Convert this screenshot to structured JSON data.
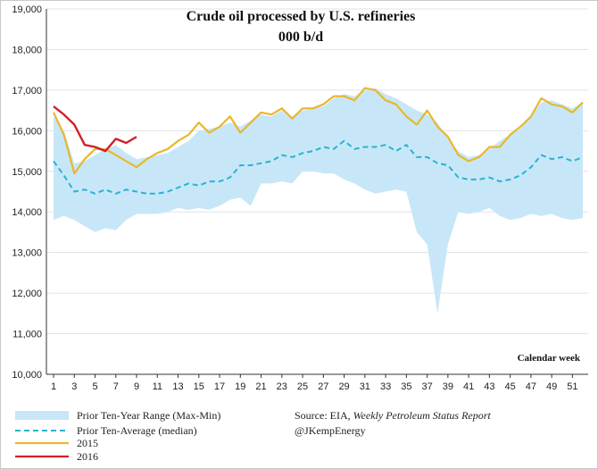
{
  "chart_data": {
    "type": "line",
    "title": "Crude oil processed by U.S. refineries",
    "subtitle": "000 b/d",
    "xlabel": "Calendar week",
    "ylim": [
      10000,
      19000
    ],
    "yticks": [
      "10,000",
      "11,000",
      "12,000",
      "13,000",
      "14,000",
      "15,000",
      "16,000",
      "17,000",
      "18,000",
      "19,000"
    ],
    "xlim": [
      1,
      52
    ],
    "xticks": [
      "1",
      "3",
      "5",
      "7",
      "9",
      "11",
      "13",
      "15",
      "17",
      "19",
      "21",
      "23",
      "25",
      "27",
      "29",
      "31",
      "33",
      "35",
      "37",
      "39",
      "41",
      "43",
      "45",
      "47",
      "49",
      "51"
    ],
    "grid": "horizontal",
    "legend_position": "bottom-left",
    "colors": {
      "range": "#c7e7f8",
      "median": "#27b5cf",
      "y2015": "#eab72c",
      "y2016": "#d0202a"
    },
    "series": [
      {
        "name": "Prior Ten-Year Range (Max-Min)",
        "kind": "band",
        "x": [
          1,
          2,
          3,
          4,
          5,
          6,
          7,
          8,
          9,
          10,
          11,
          12,
          13,
          14,
          15,
          16,
          17,
          18,
          19,
          20,
          21,
          22,
          23,
          24,
          25,
          26,
          27,
          28,
          29,
          30,
          31,
          32,
          33,
          34,
          35,
          36,
          37,
          38,
          39,
          40,
          41,
          42,
          43,
          44,
          45,
          46,
          47,
          48,
          49,
          50,
          51,
          52
        ],
        "upper": [
          16350,
          16000,
          15200,
          15250,
          15400,
          15550,
          15650,
          15450,
          15300,
          15350,
          15400,
          15450,
          15600,
          15750,
          16000,
          16050,
          16100,
          16200,
          16100,
          16250,
          16400,
          16350,
          16500,
          16350,
          16500,
          16550,
          16600,
          16800,
          16900,
          16850,
          17000,
          17050,
          16900,
          16800,
          16650,
          16500,
          16400,
          16200,
          15800,
          15500,
          15350,
          15400,
          15550,
          15750,
          15900,
          16050,
          16350,
          16700,
          16750,
          16650,
          16550,
          16700
        ],
        "lower": [
          13800,
          13900,
          13800,
          13650,
          13500,
          13600,
          13550,
          13800,
          13950,
          13950,
          13950,
          14000,
          14100,
          14050,
          14100,
          14050,
          14150,
          14300,
          14350,
          14150,
          14700,
          14700,
          14750,
          14700,
          15000,
          15000,
          14950,
          14950,
          14800,
          14700,
          14550,
          14450,
          14500,
          14550,
          14500,
          13500,
          13200,
          11500,
          13200,
          14000,
          13950,
          14000,
          14100,
          13900,
          13800,
          13850,
          13950,
          13900,
          13950,
          13850,
          13800,
          13850
        ]
      },
      {
        "name": "Prior Ten-Average (median)",
        "kind": "line",
        "x": [
          1,
          2,
          3,
          4,
          5,
          6,
          7,
          8,
          9,
          10,
          11,
          12,
          13,
          14,
          15,
          16,
          17,
          18,
          19,
          20,
          21,
          22,
          23,
          24,
          25,
          26,
          27,
          28,
          29,
          30,
          31,
          32,
          33,
          34,
          35,
          36,
          37,
          38,
          39,
          40,
          41,
          42,
          43,
          44,
          45,
          46,
          47,
          48,
          49,
          50,
          51,
          52
        ],
        "values": [
          15250,
          14900,
          14500,
          14550,
          14450,
          14550,
          14450,
          14550,
          14500,
          14450,
          14450,
          14500,
          14600,
          14700,
          14650,
          14750,
          14750,
          14850,
          15150,
          15150,
          15200,
          15250,
          15400,
          15350,
          15450,
          15500,
          15600,
          15550,
          15750,
          15550,
          15600,
          15600,
          15650,
          15500,
          15650,
          15350,
          15350,
          15200,
          15150,
          14850,
          14800,
          14800,
          14850,
          14750,
          14800,
          14900,
          15100,
          15400,
          15300,
          15350,
          15250,
          15350
        ]
      },
      {
        "name": "2015",
        "kind": "line",
        "x": [
          1,
          2,
          3,
          4,
          5,
          6,
          7,
          8,
          9,
          10,
          11,
          12,
          13,
          14,
          15,
          16,
          17,
          18,
          19,
          20,
          21,
          22,
          23,
          24,
          25,
          26,
          27,
          28,
          29,
          30,
          31,
          32,
          33,
          34,
          35,
          36,
          37,
          38,
          39,
          40,
          41,
          42,
          43,
          44,
          45,
          46,
          47,
          48,
          49,
          50,
          51,
          52
        ],
        "values": [
          16450,
          15900,
          14950,
          15300,
          15550,
          15550,
          15400,
          15250,
          15100,
          15300,
          15450,
          15550,
          15750,
          15900,
          16200,
          15950,
          16100,
          16350,
          15950,
          16200,
          16450,
          16400,
          16550,
          16300,
          16550,
          16550,
          16650,
          16850,
          16850,
          16750,
          17050,
          17000,
          16750,
          16650,
          16350,
          16150,
          16500,
          16100,
          15850,
          15400,
          15250,
          15350,
          15600,
          15600,
          15900,
          16100,
          16350,
          16800,
          16650,
          16600,
          16450,
          16700
        ]
      },
      {
        "name": "2016",
        "kind": "line",
        "x": [
          1,
          2,
          3,
          4,
          5,
          6,
          7,
          8,
          9
        ],
        "values": [
          16600,
          16400,
          16150,
          15650,
          15600,
          15500,
          15800,
          15700,
          15850
        ]
      }
    ]
  },
  "legend": {
    "range": "Prior Ten-Year Range (Max-Min)",
    "median": "Prior Ten-Average (median)",
    "y2015": "2015",
    "y2016": "2016"
  },
  "source": {
    "prefix": "Source: EIA, ",
    "italic": "Weekly Petroleum Status Report",
    "handle": "@JKempEnergy"
  }
}
